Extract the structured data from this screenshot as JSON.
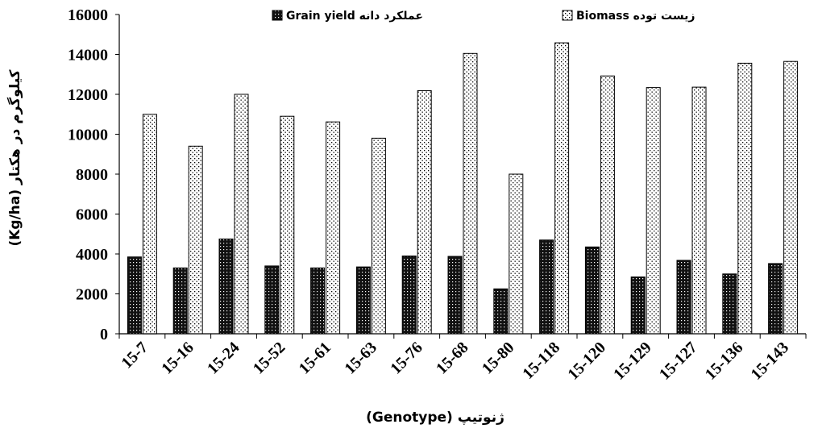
{
  "chart_data": {
    "type": "bar",
    "categories": [
      "15-7",
      "15-16",
      "15-24",
      "15-52",
      "15-61",
      "15-63",
      "15-76",
      "15-68",
      "15-80",
      "15-118",
      "15-120",
      "15-129",
      "15-127",
      "15-136",
      "15-143"
    ],
    "series": [
      {
        "name": "عملکرد دانه Grain yield",
        "values": [
          3850,
          3300,
          4750,
          3400,
          3300,
          3350,
          3900,
          3880,
          2250,
          4700,
          4350,
          2850,
          3680,
          3000,
          3520
        ],
        "pattern": "dense-dots-dark"
      },
      {
        "name": "زیست توده Biomass",
        "values": [
          11000,
          9400,
          12000,
          10900,
          10620,
          9800,
          12180,
          14050,
          8000,
          14580,
          12920,
          12340,
          12360,
          13560,
          13650
        ],
        "pattern": "sparse-dots-light"
      }
    ],
    "ylabel": "(Kg/ha) کیلوگرم در هکتار",
    "xlabel": "ژنوتیپ (Genotype)",
    "ylim": [
      0,
      16000
    ],
    "yticks": [
      0,
      2000,
      4000,
      6000,
      8000,
      10000,
      12000,
      14000,
      16000
    ],
    "grid": false,
    "legend_position": "top"
  }
}
